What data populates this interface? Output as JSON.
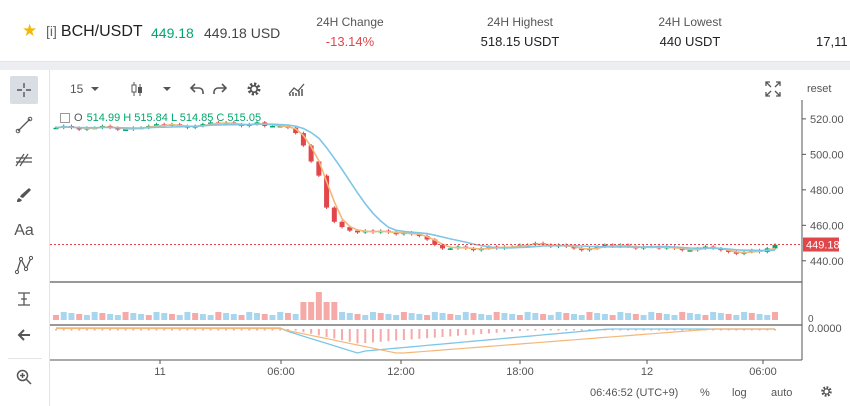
{
  "header": {
    "favorite_icon": "star-icon",
    "pair_tag": "[i]",
    "pair": "BCH/USDT",
    "price": "449.18",
    "price_usd": "449.18 USD",
    "stats": [
      {
        "label": "24H Change",
        "value": "-13.14%"
      },
      {
        "label": "24H Highest",
        "value": "518.15 USDT"
      },
      {
        "label": "24H Lowest",
        "value": "440 USDT"
      },
      {
        "label": "",
        "value": "17,11"
      }
    ]
  },
  "toolbar": {
    "interval": "15",
    "reset": "reset"
  },
  "legend": {
    "o": "O",
    "values": "514.99 H 515.84 L 514.85 C 515.05"
  },
  "chart_data": {
    "type": "candlestick",
    "price_axis": {
      "ticks": [
        440,
        460,
        480,
        500,
        520
      ],
      "ylim": [
        432,
        525
      ]
    },
    "last_price_label": "449.18",
    "volume_axis": {
      "ticks": [
        "0"
      ]
    },
    "macd_axis": {
      "ticks": [
        "0.0000"
      ]
    },
    "time_axis": {
      "ticks": [
        "11",
        "06:00",
        "12:00",
        "18:00",
        "12",
        "06:00"
      ]
    },
    "close_series": [
      515,
      516,
      515,
      514,
      515,
      515,
      516,
      515,
      514,
      514,
      515,
      515,
      516,
      517,
      516,
      517,
      516,
      515,
      516,
      517,
      518,
      517,
      518,
      517,
      516,
      517,
      518,
      516,
      516,
      516,
      515,
      512,
      505,
      496,
      488,
      470,
      462,
      459,
      457,
      456,
      457,
      456,
      457,
      456,
      455,
      456,
      455,
      454,
      452,
      449,
      447,
      447,
      448,
      447,
      446,
      447,
      448,
      447,
      448,
      448,
      449,
      449,
      450,
      449,
      448,
      449,
      448,
      447,
      446,
      447,
      448,
      449,
      448,
      449,
      448,
      447,
      448,
      448,
      447,
      448,
      447,
      446,
      446,
      447,
      448,
      447,
      446,
      445,
      444,
      445,
      446,
      445,
      447,
      449
    ]
  },
  "bottom": {
    "time": "06:46:52 (UTC+9)",
    "percent": "%",
    "log": "log",
    "auto": "auto"
  }
}
